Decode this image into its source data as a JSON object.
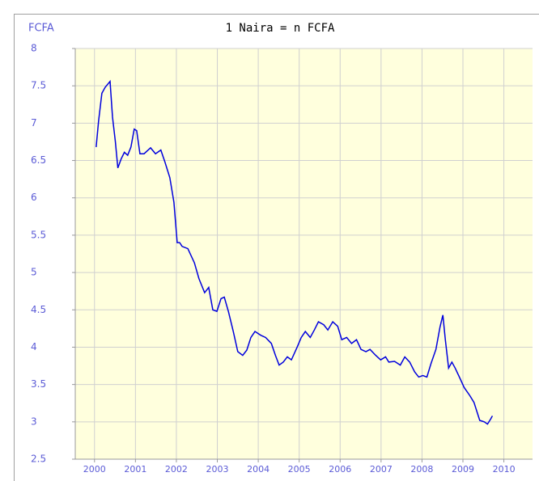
{
  "chart_data": {
    "type": "line",
    "title": "1 Naira = n FCFA",
    "y_label": "FCFA",
    "x": [
      2000.04,
      2000.1,
      2000.18,
      2000.26,
      2000.38,
      2000.44,
      2000.51,
      2000.57,
      2000.65,
      2000.73,
      2000.81,
      2000.89,
      2000.97,
      2001.03,
      2001.11,
      2001.21,
      2001.37,
      2001.49,
      2001.62,
      2001.72,
      2001.84,
      2001.94,
      2002.02,
      2002.08,
      2002.14,
      2002.28,
      2002.44,
      2002.55,
      2002.69,
      2002.79,
      2002.89,
      2002.99,
      2003.09,
      2003.17,
      2003.27,
      2003.39,
      2003.5,
      2003.62,
      2003.72,
      2003.82,
      2003.92,
      2004.06,
      2004.18,
      2004.32,
      2004.42,
      2004.51,
      2004.61,
      2004.71,
      2004.81,
      2004.95,
      2005.05,
      2005.15,
      2005.27,
      2005.37,
      2005.47,
      2005.6,
      2005.7,
      2005.82,
      2005.94,
      2006.04,
      2006.16,
      2006.28,
      2006.4,
      2006.51,
      2006.63,
      2006.73,
      2006.87,
      2006.99,
      2007.11,
      2007.19,
      2007.33,
      2007.47,
      2007.58,
      2007.7,
      2007.82,
      2007.92,
      2008.02,
      2008.12,
      2008.22,
      2008.34,
      2008.44,
      2008.51,
      2008.57,
      2008.65,
      2008.73,
      2008.81,
      2008.93,
      2009.03,
      2009.17,
      2009.27,
      2009.41,
      2009.52,
      2009.6,
      2009.68,
      2009.72
    ],
    "series": [
      {
        "name": "1 Naira = n FCFA",
        "color": "#0000dd",
        "values": [
          6.68,
          7.03,
          7.4,
          7.48,
          7.56,
          7.08,
          6.75,
          6.4,
          6.52,
          6.61,
          6.57,
          6.68,
          6.92,
          6.9,
          6.59,
          6.59,
          6.67,
          6.59,
          6.64,
          6.48,
          6.27,
          5.94,
          5.4,
          5.4,
          5.35,
          5.32,
          5.13,
          4.92,
          4.73,
          4.8,
          4.5,
          4.48,
          4.65,
          4.67,
          4.48,
          4.21,
          3.94,
          3.89,
          3.96,
          4.13,
          4.21,
          4.16,
          4.13,
          4.05,
          3.89,
          3.76,
          3.8,
          3.87,
          3.83,
          4.0,
          4.13,
          4.21,
          4.13,
          4.23,
          4.34,
          4.3,
          4.23,
          4.34,
          4.28,
          4.1,
          4.13,
          4.05,
          4.1,
          3.97,
          3.94,
          3.97,
          3.89,
          3.83,
          3.87,
          3.8,
          3.81,
          3.76,
          3.87,
          3.8,
          3.67,
          3.6,
          3.62,
          3.6,
          3.78,
          3.97,
          4.27,
          4.43,
          4.1,
          3.72,
          3.8,
          3.72,
          3.58,
          3.46,
          3.35,
          3.26,
          3.02,
          3.0,
          2.97,
          3.04,
          3.08
        ]
      }
    ],
    "xlim": [
      1999.53,
      2010.7
    ],
    "xticks": [
      2000,
      2001,
      2002,
      2003,
      2004,
      2005,
      2006,
      2007,
      2008,
      2009,
      2010
    ],
    "ylim": [
      2.5,
      8
    ],
    "yticks": [
      2.5,
      3,
      3.5,
      4,
      4.5,
      5,
      5.5,
      6,
      6.5,
      7,
      7.5,
      8
    ],
    "grid": true,
    "background": "#ffffdd"
  }
}
